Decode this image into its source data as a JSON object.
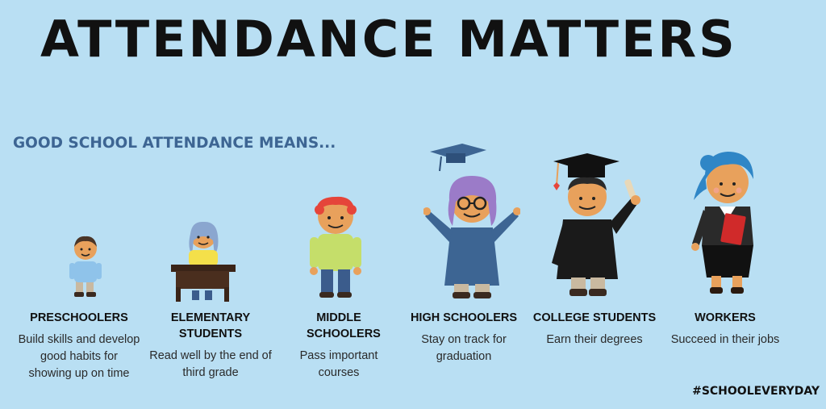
{
  "title": "ATTENDANCE MATTERS",
  "subtitle": "GOOD SCHOOL ATTENDANCE MEANS...",
  "hashtag": "#SCHOOLEVERYDAY",
  "colors": {
    "background": "#b9dff3",
    "subtitle": "#3d6593",
    "title": "#111111"
  },
  "groups": [
    {
      "heading": "PRESCHOOLERS",
      "description": "Build skills and develop good habits for showing up on time"
    },
    {
      "heading": "ELEMENTARY STUDENTS",
      "description": "Read well by the end of third grade"
    },
    {
      "heading": "MIDDLE SCHOOLERS",
      "description": "Pass important courses"
    },
    {
      "heading": "HIGH SCHOOLERS",
      "description": "Stay on track for graduation"
    },
    {
      "heading": "COLLEGE STUDENTS",
      "description": "Earn their degrees"
    },
    {
      "heading": "WORKERS",
      "description": "Succeed in their jobs"
    }
  ]
}
